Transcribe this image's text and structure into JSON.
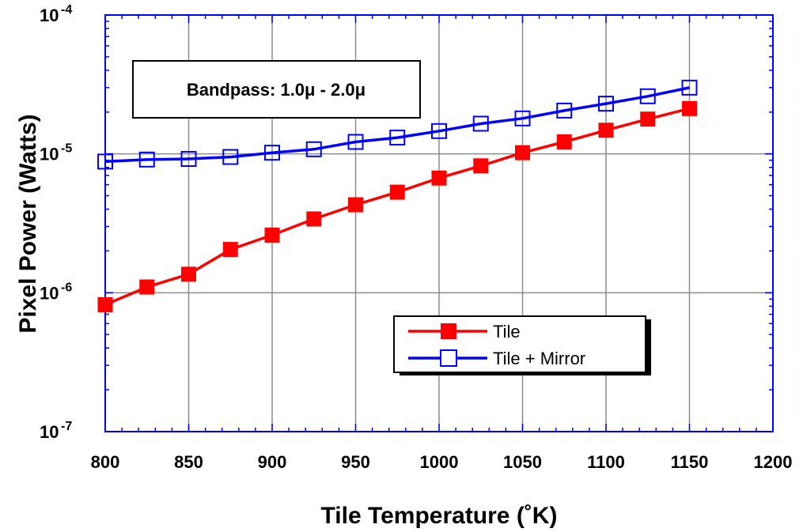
{
  "chart_data": {
    "type": "line",
    "xlabel": "Tile Temperature (˚K)",
    "ylabel": "Pixel Power (Watts)",
    "xlim": [
      800,
      1200
    ],
    "ylim": [
      1e-07,
      0.0001
    ],
    "yscale": "log",
    "grid": true,
    "x_ticks": [
      "800",
      "850",
      "900",
      "950",
      "1000",
      "1050",
      "1100",
      "1150",
      "1200"
    ],
    "y_ticks": [
      {
        "base": "10",
        "exp": "-7",
        "value": 1e-07
      },
      {
        "base": "10",
        "exp": "-6",
        "value": 1e-06
      },
      {
        "base": "10",
        "exp": "-5",
        "value": 1e-05
      },
      {
        "base": "10",
        "exp": "-4",
        "value": 0.0001
      }
    ],
    "annotation": "Bandpass: 1.0μ - 2.0μ",
    "legend_position": "lower-right",
    "x": [
      800,
      825,
      850,
      875,
      900,
      925,
      950,
      975,
      1000,
      1025,
      1050,
      1075,
      1100,
      1125,
      1150
    ],
    "series": [
      {
        "name": "Tile",
        "color": "#ff0000",
        "marker": "filled-square",
        "values": [
          8.2e-07,
          1.1e-06,
          1.36e-06,
          2.05e-06,
          2.6e-06,
          3.4e-06,
          4.3e-06,
          5.3e-06,
          6.7e-06,
          8.2e-06,
          1.02e-05,
          1.22e-05,
          1.48e-05,
          1.78e-05,
          2.12e-05
        ]
      },
      {
        "name": "Tile + Mirror",
        "color": "#0000ff",
        "marker": "open-square",
        "values": [
          8.8e-06,
          9.1e-06,
          9.2e-06,
          9.5e-06,
          1.02e-05,
          1.08e-05,
          1.22e-05,
          1.31e-05,
          1.46e-05,
          1.65e-05,
          1.8e-05,
          2.05e-05,
          2.3e-05,
          2.6e-05,
          3e-05
        ]
      }
    ]
  }
}
